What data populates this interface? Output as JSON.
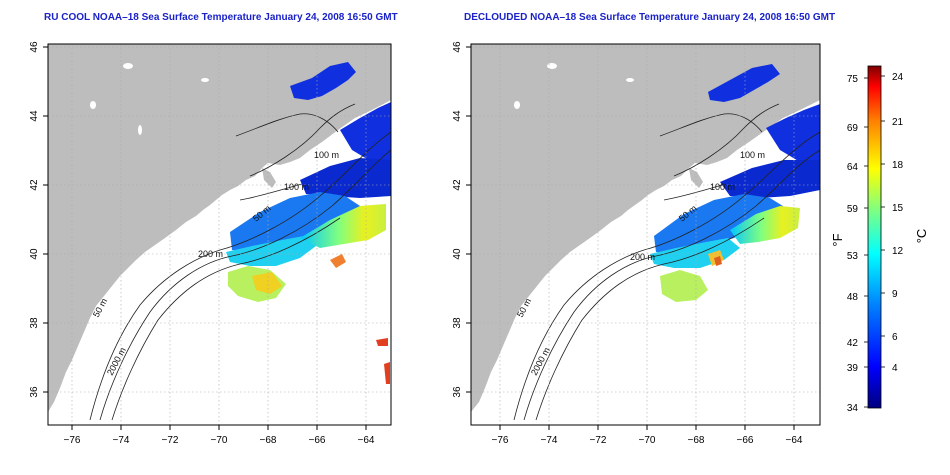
{
  "panels": [
    {
      "title": "RU COOL NOAA–18 Sea Surface Temperature January 24, 2008 16:50 GMT",
      "x_ticks": [
        "−76",
        "−74",
        "−72",
        "−70",
        "−68",
        "−66",
        "−64"
      ],
      "y_ticks": [
        "46",
        "44",
        "42",
        "40",
        "38",
        "36"
      ],
      "contour_labels": [
        "100 m",
        "100 m",
        "50 m",
        "200 m",
        "50 m",
        "2000 m"
      ]
    },
    {
      "title": "DECLOUDED NOAA–18 Sea Surface Temperature January 24, 2008 16:50 GMT",
      "x_ticks": [
        "−76",
        "−74",
        "−72",
        "−70",
        "−68",
        "−66",
        "−64"
      ],
      "y_ticks": [
        "46",
        "44",
        "42",
        "40",
        "38",
        "36"
      ],
      "contour_labels": [
        "100 m",
        "100 m",
        "50 m",
        "200 m",
        "50 m",
        "2000 m"
      ]
    }
  ],
  "colorbar": {
    "f_label": "°F",
    "c_label": "°C",
    "f_ticks": [
      "75",
      "69",
      "64",
      "59",
      "53",
      "48",
      "42",
      "39",
      "34"
    ],
    "c_ticks": [
      "24",
      "21",
      "18",
      "15",
      "12",
      "9",
      "6",
      "4"
    ],
    "gradient_colors": [
      "#00007f",
      "#0000ff",
      "#0080ff",
      "#00ffff",
      "#80ff80",
      "#ffff00",
      "#ff8000",
      "#ff0000",
      "#7f0000"
    ]
  },
  "colors": {
    "title": "#1a22c8",
    "land": "#bdbdbd",
    "cold": "#1030e0",
    "warm": "#e0e020"
  }
}
